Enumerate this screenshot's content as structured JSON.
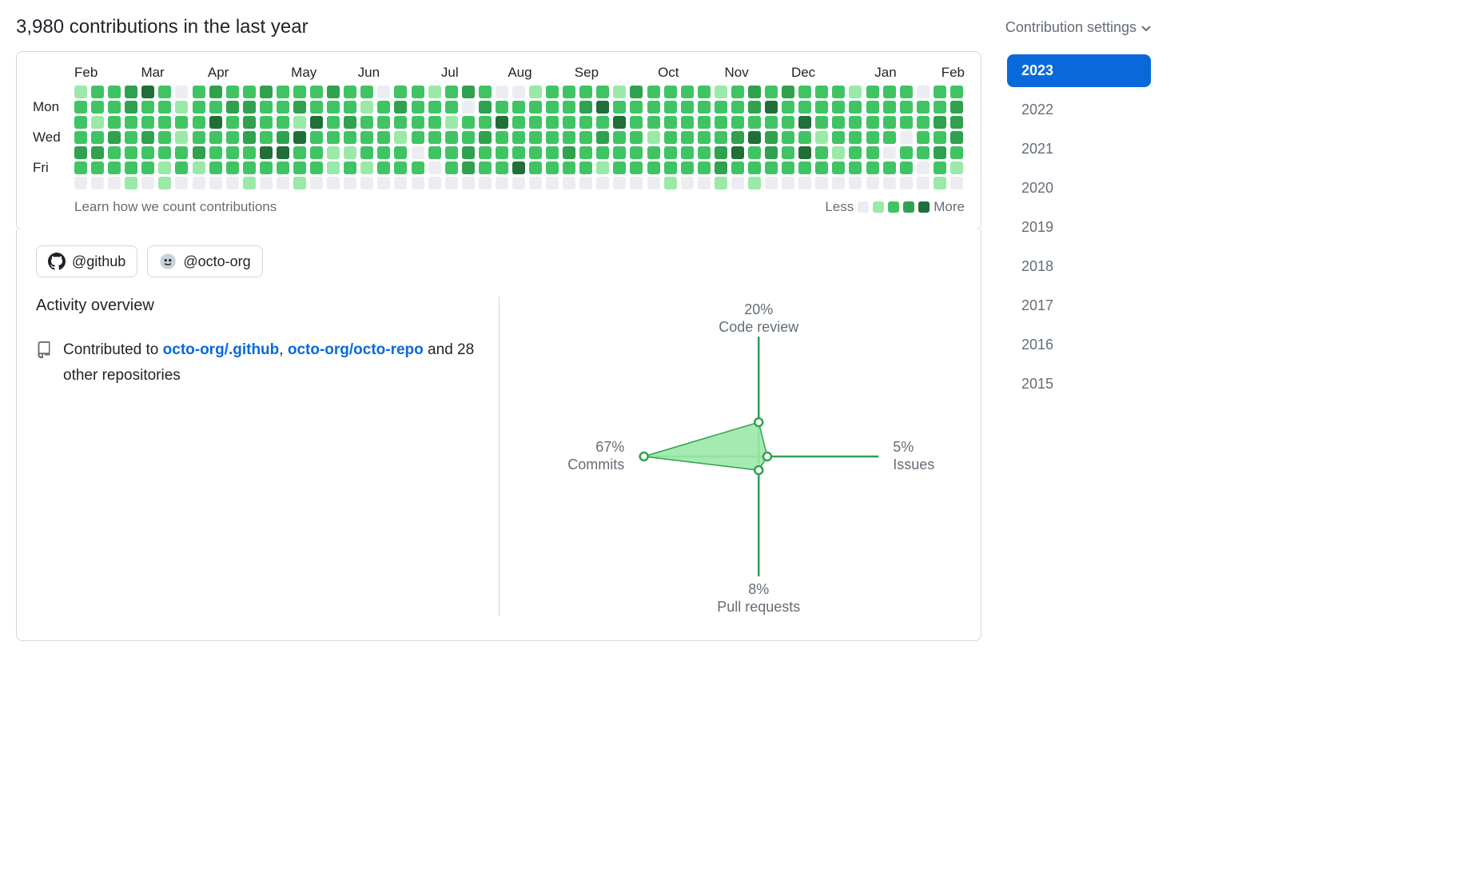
{
  "header": {
    "title": "3,980 contributions in the last year",
    "settings_label": "Contribution settings"
  },
  "calendar": {
    "months": [
      "Feb",
      "Mar",
      "Apr",
      "May",
      "Jun",
      "Jul",
      "Aug",
      "Sep",
      "Oct",
      "Nov",
      "Dec",
      "Jan",
      "Feb"
    ],
    "month_starts": [
      0,
      4,
      8,
      13,
      17,
      22,
      26,
      30,
      35,
      39,
      43,
      48,
      52
    ],
    "day_labels": [
      "",
      "Mon",
      "",
      "Wed",
      "",
      "Fri",
      ""
    ],
    "weeks": 53,
    "learn_text": "Learn how we count contributions",
    "legend_less": "Less",
    "legend_more": "More",
    "colors": {
      "l0": "#ebedf0",
      "l1": "#9be9a8",
      "l2": "#40c463",
      "l3": "#30a14e",
      "l4": "#216e39"
    },
    "levels": [
      [
        1,
        2,
        2,
        3,
        4,
        2,
        0,
        2,
        3,
        2,
        2,
        3,
        2,
        2,
        2,
        3,
        2,
        2,
        0,
        2,
        2,
        1,
        2,
        3,
        2,
        0,
        0,
        1,
        2,
        2,
        2,
        2,
        1,
        3,
        2,
        2,
        2,
        2,
        1,
        2,
        3,
        2,
        3,
        2,
        2,
        2,
        1,
        2,
        2,
        2,
        0,
        2,
        2
      ],
      [
        2,
        2,
        2,
        3,
        2,
        2,
        1,
        2,
        2,
        3,
        3,
        2,
        2,
        3,
        2,
        2,
        2,
        1,
        2,
        3,
        2,
        2,
        2,
        0,
        3,
        2,
        2,
        2,
        2,
        2,
        3,
        4,
        2,
        2,
        2,
        2,
        2,
        2,
        2,
        2,
        3,
        4,
        2,
        2,
        2,
        2,
        2,
        2,
        2,
        2,
        2,
        2,
        3
      ],
      [
        2,
        1,
        2,
        2,
        2,
        2,
        2,
        2,
        4,
        2,
        3,
        2,
        2,
        1,
        4,
        2,
        3,
        2,
        2,
        2,
        2,
        2,
        1,
        2,
        2,
        4,
        2,
        2,
        2,
        2,
        2,
        2,
        4,
        2,
        2,
        2,
        2,
        2,
        2,
        2,
        2,
        2,
        2,
        4,
        2,
        2,
        2,
        2,
        2,
        2,
        2,
        3,
        3
      ],
      [
        2,
        2,
        3,
        2,
        3,
        2,
        1,
        2,
        2,
        2,
        3,
        2,
        3,
        4,
        2,
        2,
        2,
        2,
        2,
        1,
        2,
        2,
        2,
        2,
        3,
        2,
        2,
        2,
        2,
        2,
        2,
        3,
        2,
        2,
        1,
        2,
        2,
        2,
        2,
        3,
        4,
        3,
        2,
        2,
        1,
        2,
        2,
        2,
        2,
        0,
        2,
        2,
        3
      ],
      [
        3,
        3,
        2,
        2,
        2,
        2,
        2,
        3,
        2,
        2,
        2,
        4,
        4,
        2,
        2,
        1,
        1,
        2,
        2,
        2,
        0,
        2,
        2,
        3,
        2,
        2,
        2,
        2,
        2,
        3,
        2,
        2,
        2,
        2,
        2,
        2,
        2,
        2,
        3,
        4,
        2,
        3,
        2,
        4,
        2,
        1,
        2,
        2,
        0,
        2,
        2,
        3,
        2
      ],
      [
        2,
        2,
        2,
        2,
        2,
        1,
        2,
        1,
        2,
        2,
        2,
        2,
        2,
        2,
        2,
        1,
        2,
        1,
        2,
        2,
        2,
        0,
        2,
        3,
        2,
        2,
        4,
        2,
        2,
        2,
        2,
        1,
        2,
        2,
        2,
        2,
        2,
        2,
        3,
        2,
        2,
        2,
        2,
        2,
        2,
        2,
        2,
        2,
        2,
        2,
        0,
        2,
        1
      ],
      [
        0,
        0,
        0,
        1,
        0,
        1,
        0,
        0,
        0,
        0,
        1,
        0,
        0,
        1,
        0,
        0,
        0,
        0,
        0,
        0,
        0,
        0,
        0,
        0,
        0,
        0,
        0,
        0,
        0,
        0,
        0,
        0,
        0,
        0,
        0,
        1,
        0,
        0,
        1,
        0,
        1,
        0,
        0,
        0,
        0,
        0,
        0,
        0,
        0,
        0,
        0,
        1,
        0
      ]
    ]
  },
  "orgs": [
    {
      "handle": "@github",
      "avatar_bg": "#ffffff",
      "avatar": "gh"
    },
    {
      "handle": "@octo-org",
      "avatar_bg": "#ffffff",
      "avatar": "octo"
    }
  ],
  "activity": {
    "heading": "Activity overview",
    "contributed_prefix": "Contributed to ",
    "repos": [
      "octo-org/.github",
      "octo-org/octo-repo"
    ],
    "suffix": " and 28 other repositories"
  },
  "radar": {
    "axes": [
      {
        "label": "Code review",
        "pct": "20%",
        "value": 20,
        "angle": 0
      },
      {
        "label": "Issues",
        "pct": "5%",
        "value": 5,
        "angle": 90
      },
      {
        "label": "Pull requests",
        "pct": "8%",
        "value": 8,
        "angle": 180
      },
      {
        "label": "Commits",
        "pct": "67%",
        "value": 67,
        "angle": 270
      }
    ],
    "axis_color": "#30a14e",
    "fill_color": "#9be9a8",
    "point_stroke": "#30a14e",
    "max_radius": 150,
    "scale_max": 70
  },
  "years": {
    "list": [
      "2023",
      "2022",
      "2021",
      "2020",
      "2019",
      "2018",
      "2017",
      "2016",
      "2015"
    ],
    "active": "2023",
    "active_bg": "#0969da",
    "active_fg": "#ffffff"
  }
}
